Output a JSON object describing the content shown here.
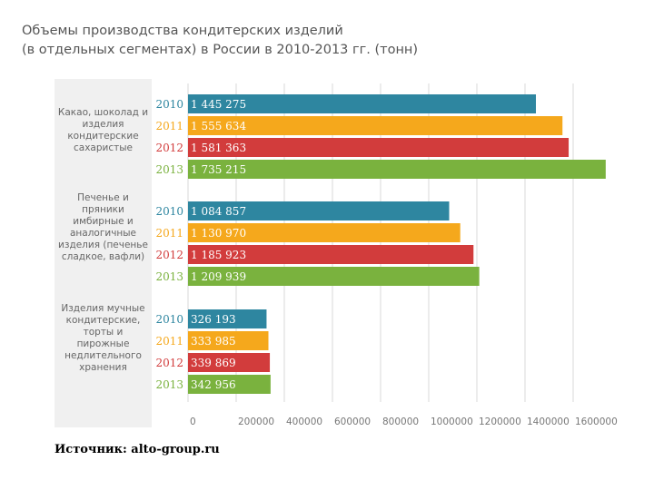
{
  "chart_data": {
    "type": "bar",
    "orientation": "horizontal",
    "title": "Объемы производства кондитерских изделий",
    "subtitle": "(в отдельных сегментах) в России в 2010-2013 гг. (тонн)",
    "xlabel": "тонн",
    "xlim": [
      0,
      1600000
    ],
    "xticks": [
      "0",
      "200000",
      "400000",
      "600000",
      "800000",
      "1000000",
      "1200000",
      "1400000",
      "1600000"
    ],
    "grid": true,
    "years": [
      "2010",
      "2011",
      "2012",
      "2013"
    ],
    "year_colors": [
      "#2e86a0",
      "#f5a81c",
      "#d23c3c",
      "#7ab23e"
    ],
    "groups": [
      {
        "category": "Какао, шоколад и изделия кондитерские сахаристые",
        "values": [
          1445275,
          1555634,
          1581363,
          1735215
        ],
        "value_labels": [
          "1 445 275",
          "1 555 634",
          "1 581 363",
          "1 735 215"
        ]
      },
      {
        "category": "Печенье и пряники имбирные и аналогичные изделия (печенье сладкое, вафли)",
        "values": [
          1084857,
          1130970,
          1185923,
          1209939
        ],
        "value_labels": [
          "1 084 857",
          "1 130 970",
          "1 185 923",
          "1 209 939"
        ]
      },
      {
        "category": "Изделия мучные кондитерские, торты и пирожные недлительного хранения",
        "values": [
          326193,
          333985,
          339869,
          342956
        ],
        "value_labels": [
          "326 193",
          "333 985",
          "339 869",
          "342 956"
        ]
      }
    ]
  },
  "footer": {
    "source": "Источник: alto-group.ru"
  }
}
